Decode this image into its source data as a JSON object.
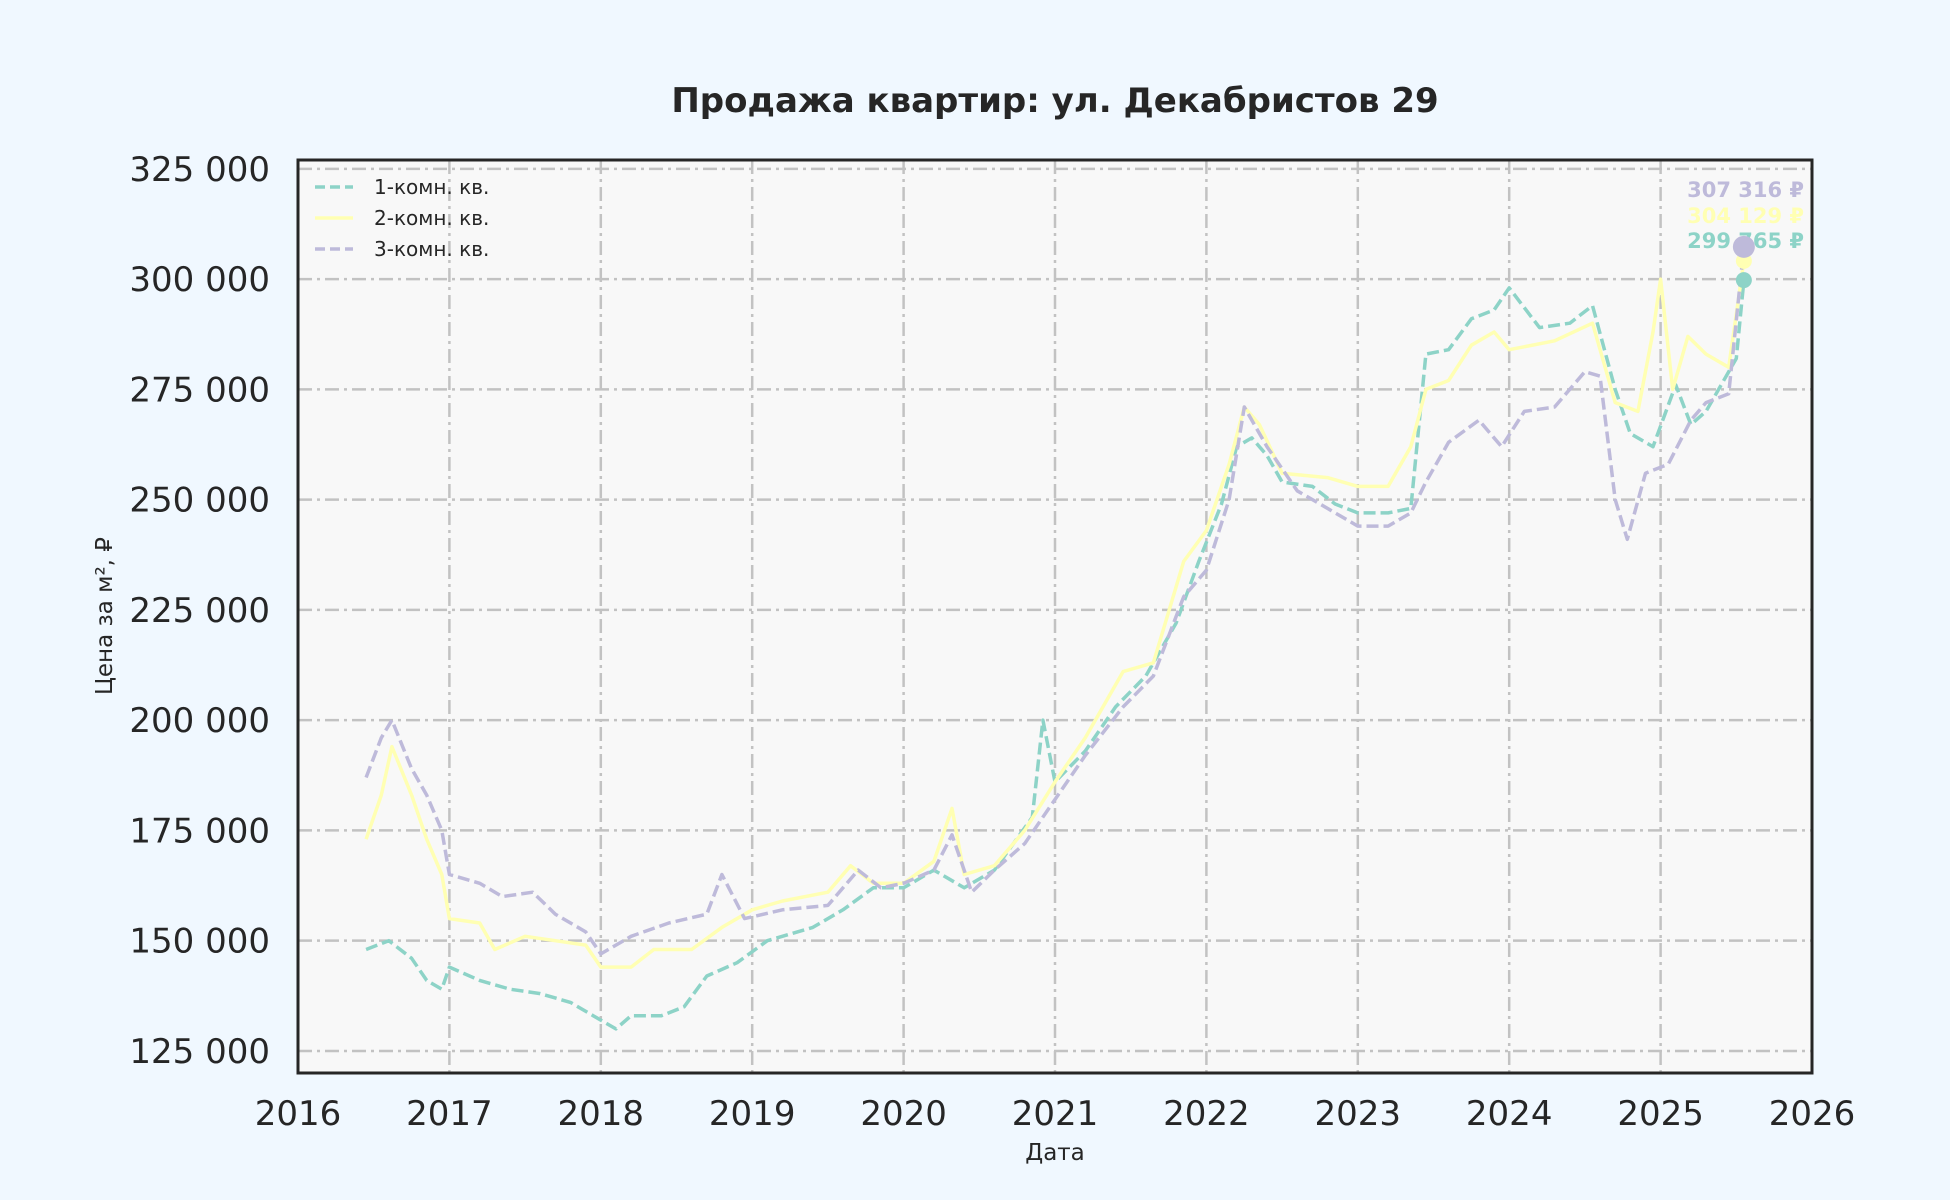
{
  "chart_data": {
    "type": "line",
    "title": "Продажа квартир: ул. Декабристов 29",
    "xlabel": "Дата",
    "ylabel": "Цена за м², ₽",
    "xlim": [
      2016,
      2026
    ],
    "ylim": [
      120000,
      327000
    ],
    "x_ticks": [
      "2016",
      "2017",
      "2018",
      "2019",
      "2020",
      "2021",
      "2022",
      "2023",
      "2024",
      "2025",
      "2026"
    ],
    "y_ticks": [
      "125 000",
      "150 000",
      "175 000",
      "200 000",
      "225 000",
      "250 000",
      "275 000",
      "300 000",
      "325 000"
    ],
    "grid": true,
    "legend_position": "top-left",
    "series": [
      {
        "name": "1-комн. кв.",
        "color": "#8dd3c7",
        "dash": "dashed",
        "end_label": "299 765 ₽",
        "end_value": 299765,
        "points": [
          [
            2016.45,
            148000
          ],
          [
            2016.6,
            150000
          ],
          [
            2016.75,
            146000
          ],
          [
            2016.85,
            141000
          ],
          [
            2016.95,
            139000
          ],
          [
            2017.0,
            144000
          ],
          [
            2017.2,
            141000
          ],
          [
            2017.4,
            139000
          ],
          [
            2017.6,
            138000
          ],
          [
            2017.8,
            136000
          ],
          [
            2017.95,
            133000
          ],
          [
            2018.1,
            130000
          ],
          [
            2018.2,
            133000
          ],
          [
            2018.4,
            133000
          ],
          [
            2018.55,
            135000
          ],
          [
            2018.7,
            142000
          ],
          [
            2018.9,
            145000
          ],
          [
            2019.1,
            150000
          ],
          [
            2019.4,
            153000
          ],
          [
            2019.6,
            157000
          ],
          [
            2019.8,
            162000
          ],
          [
            2020.0,
            162000
          ],
          [
            2020.2,
            166000
          ],
          [
            2020.4,
            162000
          ],
          [
            2020.6,
            166000
          ],
          [
            2020.85,
            178000
          ],
          [
            2020.92,
            200000
          ],
          [
            2021.0,
            186000
          ],
          [
            2021.2,
            193000
          ],
          [
            2021.4,
            203000
          ],
          [
            2021.6,
            210000
          ],
          [
            2021.8,
            222000
          ],
          [
            2021.95,
            236000
          ],
          [
            2022.1,
            249000
          ],
          [
            2022.2,
            262000
          ],
          [
            2022.3,
            264000
          ],
          [
            2022.4,
            260000
          ],
          [
            2022.5,
            254000
          ],
          [
            2022.7,
            253000
          ],
          [
            2022.85,
            249000
          ],
          [
            2023.0,
            247000
          ],
          [
            2023.2,
            247000
          ],
          [
            2023.35,
            248000
          ],
          [
            2023.45,
            283000
          ],
          [
            2023.6,
            284000
          ],
          [
            2023.75,
            291000
          ],
          [
            2023.9,
            293000
          ],
          [
            2024.0,
            298000
          ],
          [
            2024.2,
            289000
          ],
          [
            2024.4,
            290000
          ],
          [
            2024.55,
            294000
          ],
          [
            2024.7,
            275000
          ],
          [
            2024.8,
            265000
          ],
          [
            2024.95,
            262000
          ],
          [
            2025.1,
            276000
          ],
          [
            2025.2,
            267000
          ],
          [
            2025.3,
            270000
          ],
          [
            2025.4,
            276000
          ],
          [
            2025.5,
            282000
          ],
          [
            2025.55,
            299765
          ]
        ]
      },
      {
        "name": "2-комн. кв.",
        "color": "#ffffb3",
        "dash": "solid",
        "end_label": "304 129 ₽",
        "end_value": 304129,
        "points": [
          [
            2016.45,
            173000
          ],
          [
            2016.55,
            183000
          ],
          [
            2016.62,
            194000
          ],
          [
            2016.75,
            183000
          ],
          [
            2016.85,
            173000
          ],
          [
            2016.95,
            165000
          ],
          [
            2017.0,
            155000
          ],
          [
            2017.2,
            154000
          ],
          [
            2017.3,
            148000
          ],
          [
            2017.5,
            151000
          ],
          [
            2017.7,
            150000
          ],
          [
            2017.9,
            149000
          ],
          [
            2018.0,
            144000
          ],
          [
            2018.2,
            144000
          ],
          [
            2018.35,
            148000
          ],
          [
            2018.6,
            148000
          ],
          [
            2018.8,
            153000
          ],
          [
            2019.0,
            157000
          ],
          [
            2019.2,
            159000
          ],
          [
            2019.5,
            161000
          ],
          [
            2019.65,
            167000
          ],
          [
            2019.8,
            163000
          ],
          [
            2020.0,
            163000
          ],
          [
            2020.2,
            168000
          ],
          [
            2020.32,
            180000
          ],
          [
            2020.4,
            165000
          ],
          [
            2020.6,
            167000
          ],
          [
            2020.8,
            175000
          ],
          [
            2021.0,
            186000
          ],
          [
            2021.2,
            196000
          ],
          [
            2021.45,
            211000
          ],
          [
            2021.65,
            213000
          ],
          [
            2021.85,
            236000
          ],
          [
            2022.0,
            243000
          ],
          [
            2022.15,
            258000
          ],
          [
            2022.25,
            271000
          ],
          [
            2022.35,
            267000
          ],
          [
            2022.5,
            256000
          ],
          [
            2022.8,
            255000
          ],
          [
            2023.0,
            253000
          ],
          [
            2023.2,
            253000
          ],
          [
            2023.35,
            262000
          ],
          [
            2023.45,
            275000
          ],
          [
            2023.6,
            277000
          ],
          [
            2023.75,
            285000
          ],
          [
            2023.9,
            288000
          ],
          [
            2024.0,
            284000
          ],
          [
            2024.3,
            286000
          ],
          [
            2024.55,
            290000
          ],
          [
            2024.7,
            272000
          ],
          [
            2024.85,
            270000
          ],
          [
            2024.95,
            288000
          ],
          [
            2025.0,
            300000
          ],
          [
            2025.08,
            275000
          ],
          [
            2025.18,
            287000
          ],
          [
            2025.3,
            283000
          ],
          [
            2025.45,
            280000
          ],
          [
            2025.55,
            304129
          ]
        ]
      },
      {
        "name": "3-комн. кв.",
        "color": "#bebada",
        "dash": "dashed",
        "end_label": "307 316 ₽",
        "end_value": 307316,
        "points": [
          [
            2016.45,
            187000
          ],
          [
            2016.55,
            196000
          ],
          [
            2016.62,
            200000
          ],
          [
            2016.75,
            189000
          ],
          [
            2016.85,
            183000
          ],
          [
            2016.95,
            175000
          ],
          [
            2017.0,
            165000
          ],
          [
            2017.2,
            163000
          ],
          [
            2017.35,
            160000
          ],
          [
            2017.55,
            161000
          ],
          [
            2017.7,
            156000
          ],
          [
            2017.9,
            152000
          ],
          [
            2018.0,
            147000
          ],
          [
            2018.2,
            151000
          ],
          [
            2018.45,
            154000
          ],
          [
            2018.7,
            156000
          ],
          [
            2018.8,
            165000
          ],
          [
            2018.95,
            155000
          ],
          [
            2019.2,
            157000
          ],
          [
            2019.5,
            158000
          ],
          [
            2019.7,
            166000
          ],
          [
            2019.85,
            162000
          ],
          [
            2020.0,
            163000
          ],
          [
            2020.2,
            166000
          ],
          [
            2020.32,
            174000
          ],
          [
            2020.45,
            161000
          ],
          [
            2020.6,
            166000
          ],
          [
            2020.8,
            172000
          ],
          [
            2021.0,
            182000
          ],
          [
            2021.2,
            192000
          ],
          [
            2021.45,
            203000
          ],
          [
            2021.65,
            210000
          ],
          [
            2021.85,
            228000
          ],
          [
            2022.0,
            234000
          ],
          [
            2022.15,
            250000
          ],
          [
            2022.25,
            271000
          ],
          [
            2022.4,
            262000
          ],
          [
            2022.6,
            252000
          ],
          [
            2022.8,
            248000
          ],
          [
            2023.0,
            244000
          ],
          [
            2023.2,
            244000
          ],
          [
            2023.35,
            247000
          ],
          [
            2023.45,
            254000
          ],
          [
            2023.6,
            263000
          ],
          [
            2023.8,
            268000
          ],
          [
            2023.95,
            262000
          ],
          [
            2024.1,
            270000
          ],
          [
            2024.3,
            271000
          ],
          [
            2024.5,
            279000
          ],
          [
            2024.6,
            278000
          ],
          [
            2024.7,
            250000
          ],
          [
            2024.78,
            241000
          ],
          [
            2024.9,
            256000
          ],
          [
            2025.05,
            258000
          ],
          [
            2025.2,
            268000
          ],
          [
            2025.3,
            272000
          ],
          [
            2025.45,
            274000
          ],
          [
            2025.55,
            307316
          ]
        ]
      }
    ]
  }
}
